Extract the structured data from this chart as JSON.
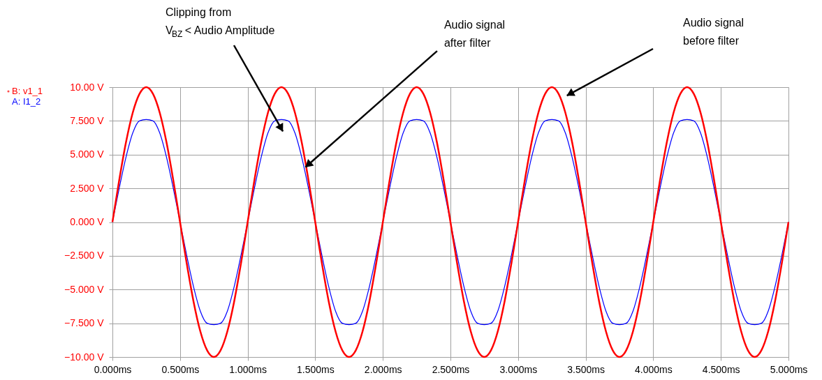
{
  "chart_data": {
    "type": "line",
    "x": [
      0,
      0.05,
      0.1,
      0.15,
      0.2,
      0.25,
      0.3,
      0.35,
      0.4,
      0.45,
      0.5,
      0.55,
      0.6,
      0.65,
      0.7,
      0.75,
      0.8,
      0.85,
      0.9,
      0.95,
      1,
      1.05,
      1.1,
      1.15,
      1.2,
      1.25,
      1.3,
      1.35,
      1.4,
      1.45,
      1.5,
      1.55,
      1.6,
      1.65,
      1.7,
      1.75,
      1.8,
      1.85,
      1.9,
      1.95,
      2,
      2.05,
      2.1,
      2.15,
      2.2,
      2.25,
      2.3,
      2.35,
      2.4,
      2.45,
      2.5,
      2.55,
      2.6,
      2.65,
      2.7,
      2.75,
      2.8,
      2.85,
      2.9,
      2.95,
      3,
      3.05,
      3.1,
      3.15,
      3.2,
      3.25,
      3.3,
      3.35,
      3.4,
      3.45,
      3.5,
      3.55,
      3.6,
      3.65,
      3.7,
      3.75,
      3.8,
      3.85,
      3.9,
      3.95,
      4,
      4.05,
      4.1,
      4.15,
      4.2,
      4.25,
      4.3,
      4.35,
      4.4,
      4.45,
      4.5,
      4.55,
      4.6,
      4.65,
      4.7,
      4.75,
      4.8,
      4.85,
      4.9,
      4.95,
      5
    ],
    "series": [
      {
        "name": "B: v1_1",
        "color": "#ff0000",
        "values": [
          0,
          3.1,
          5.9,
          8.1,
          9.5,
          10,
          9.5,
          8.1,
          5.9,
          3.1,
          0,
          -3.1,
          -5.9,
          -8.1,
          -9.5,
          -10,
          -9.5,
          -8.1,
          -5.9,
          -3.1,
          0,
          3.1,
          5.9,
          8.1,
          9.5,
          10,
          9.5,
          8.1,
          5.9,
          3.1,
          0,
          -3.1,
          -5.9,
          -8.1,
          -9.5,
          -10,
          -9.5,
          -8.1,
          -5.9,
          -3.1,
          0,
          3.1,
          5.9,
          8.1,
          9.5,
          10,
          9.5,
          8.1,
          5.9,
          3.1,
          0,
          -3.1,
          -5.9,
          -8.1,
          -9.5,
          -10,
          -9.5,
          -8.1,
          -5.9,
          -3.1,
          0,
          3.1,
          5.9,
          8.1,
          9.5,
          10,
          9.5,
          8.1,
          5.9,
          3.1,
          0,
          -3.1,
          -5.9,
          -8.1,
          -9.5,
          -10,
          -9.5,
          -8.1,
          -5.9,
          -3.1,
          0,
          3.1,
          5.9,
          8.1,
          9.5,
          10,
          9.5,
          8.1,
          5.9,
          3.1,
          0,
          -3.1,
          -5.9,
          -8.1,
          -9.5,
          -10,
          -9.5,
          -8.1,
          -5.9,
          -3.1,
          0
        ]
      },
      {
        "name": "A: I1_2",
        "color": "#0000ff",
        "values": [
          0,
          2.5,
          4.8,
          6.6,
          7.5,
          7.6,
          7.5,
          6.6,
          4.8,
          2.5,
          0,
          -2.5,
          -4.8,
          -6.6,
          -7.5,
          -7.6,
          -7.5,
          -6.6,
          -4.8,
          -2.5,
          0,
          2.5,
          4.8,
          6.6,
          7.5,
          7.6,
          7.5,
          6.6,
          4.8,
          2.5,
          0,
          -2.5,
          -4.8,
          -6.6,
          -7.5,
          -7.6,
          -7.5,
          -6.6,
          -4.8,
          -2.5,
          0,
          2.5,
          4.8,
          6.6,
          7.5,
          7.6,
          7.5,
          6.6,
          4.8,
          2.5,
          0,
          -2.5,
          -4.8,
          -6.6,
          -7.5,
          -7.6,
          -7.5,
          -6.6,
          -4.8,
          -2.5,
          0,
          2.5,
          4.8,
          6.6,
          7.5,
          7.6,
          7.5,
          6.6,
          4.8,
          2.5,
          0,
          -2.5,
          -4.8,
          -6.6,
          -7.5,
          -7.6,
          -7.5,
          -6.6,
          -4.8,
          -2.5,
          0,
          2.5,
          4.8,
          6.6,
          7.5,
          7.6,
          7.5,
          6.6,
          4.8,
          2.5,
          0,
          -2.5,
          -4.8,
          -6.6,
          -7.5,
          -7.6,
          -7.5,
          -6.6,
          -4.8,
          -2.5,
          0
        ]
      }
    ],
    "xlim": [
      0,
      5
    ],
    "ylim": [
      -10,
      10
    ],
    "xticks": [
      {
        "value": 0,
        "label": "0.000ms"
      },
      {
        "value": 0.5,
        "label": "0.500ms"
      },
      {
        "value": 1,
        "label": "1.000ms"
      },
      {
        "value": 1.5,
        "label": "1.500ms"
      },
      {
        "value": 2,
        "label": "2.000ms"
      },
      {
        "value": 2.5,
        "label": "2.500ms"
      },
      {
        "value": 3,
        "label": "3.000ms"
      },
      {
        "value": 3.5,
        "label": "3.500ms"
      },
      {
        "value": 4,
        "label": "4.000ms"
      },
      {
        "value": 4.5,
        "label": "4.500ms"
      },
      {
        "value": 5,
        "label": "5.000ms"
      }
    ],
    "yticks": [
      {
        "value": -10,
        "label": "−10.00 V"
      },
      {
        "value": -7.5,
        "label": "−7.500 V"
      },
      {
        "value": -5,
        "label": "−5.000 V"
      },
      {
        "value": -2.5,
        "label": "−2.500 V"
      },
      {
        "value": 0,
        "label": "0.000 V"
      },
      {
        "value": 2.5,
        "label": "2.500 V"
      },
      {
        "value": 5,
        "label": "5.000 V"
      },
      {
        "value": 7.5,
        "label": "7.500 V"
      },
      {
        "value": 10,
        "label": "10.00 V"
      }
    ],
    "annotations": [
      "Clipping from\nV$_{BZ}$ < Audio Amplitude",
      {
        "text": "Audio signal\nafter filter",
        "x": 1.42,
        "y": 4.0
      },
      "Audio signal\nbefore filter"
    ],
    "grid": true,
    "legend": "top left",
    "marker": "none",
    "line_style": "solid"
  }
}
